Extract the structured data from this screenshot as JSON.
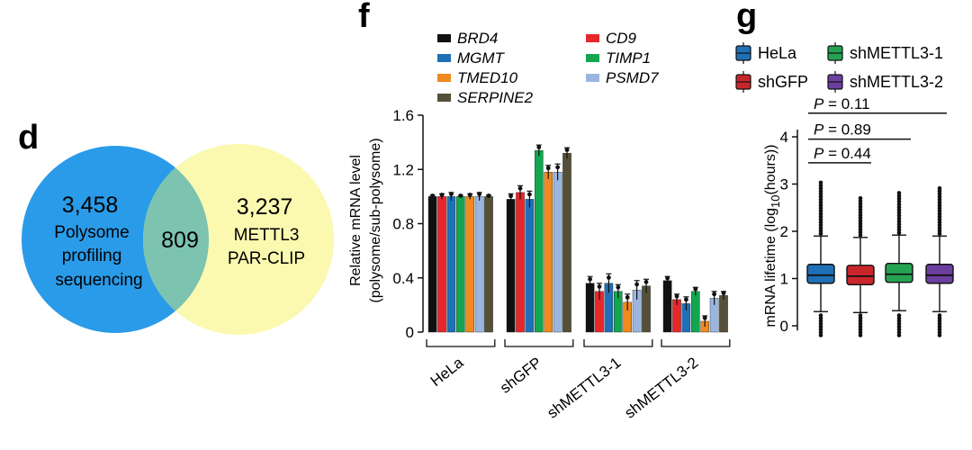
{
  "panels": {
    "d": "d",
    "f": "f",
    "g": "g"
  },
  "venn": {
    "left": {
      "count": "3,458",
      "lines": [
        "Polysome",
        "profiling",
        "sequencing"
      ],
      "color": "#2a9be8"
    },
    "right": {
      "count": "3,237",
      "lines": [
        "METTL3",
        "PAR-CLIP"
      ],
      "color": "#fbf8b0"
    },
    "overlap": {
      "count": "809",
      "color": "#7cc3b0"
    }
  },
  "chart_data": [
    {
      "panel": "f",
      "type": "bar",
      "ylabel_lines": [
        "Relative mRNA level",
        "(polysome/sub-polysome)"
      ],
      "ylim": [
        0,
        1.6
      ],
      "yticks": [
        "0",
        "0.4",
        "0.8",
        "1.2",
        "1.6"
      ],
      "categories": [
        "HeLa",
        "shGFP",
        "shMETTL3-1",
        "shMETTL3-2"
      ],
      "series": [
        {
          "name": "BRD4",
          "color": "#111111",
          "values": [
            1.0,
            0.98,
            0.36,
            0.38
          ]
        },
        {
          "name": "CD9",
          "color": "#e8272b",
          "values": [
            1.0,
            1.03,
            0.3,
            0.24
          ]
        },
        {
          "name": "MGMT",
          "color": "#1f70b6",
          "values": [
            1.0,
            0.98,
            0.36,
            0.21
          ]
        },
        {
          "name": "TIMP1",
          "color": "#12a650",
          "values": [
            1.0,
            1.34,
            0.3,
            0.3
          ]
        },
        {
          "name": "TMED10",
          "color": "#ee8a1f",
          "values": [
            1.0,
            1.18,
            0.22,
            0.08
          ]
        },
        {
          "name": "PSMD7",
          "color": "#9ab6e0",
          "values": [
            1.0,
            1.18,
            0.31,
            0.25
          ]
        },
        {
          "name": "SERPINE2",
          "color": "#55503a",
          "values": [
            1.0,
            1.32,
            0.34,
            0.27
          ]
        }
      ],
      "legend_order": [
        "BRD4",
        "CD9",
        "MGMT",
        "TIMP1",
        "TMED10",
        "PSMD7",
        "SERPINE2"
      ]
    },
    {
      "panel": "g",
      "type": "box",
      "ylabel": "mRNA lifetime (log10(hours))",
      "ylim": [
        0,
        4
      ],
      "yticks": [
        "0",
        "1",
        "2",
        "3",
        "4"
      ],
      "groups": [
        {
          "name": "HeLa",
          "color": "#1f70b6",
          "q1": 0.9,
          "median": 1.07,
          "q3": 1.3,
          "whisker_low": 0.3,
          "whisker_high": 1.9,
          "outlier_min": -0.2,
          "outlier_max": 3.05
        },
        {
          "name": "shGFP",
          "color": "#c9262c",
          "q1": 0.87,
          "median": 1.05,
          "q3": 1.28,
          "whisker_low": 0.28,
          "whisker_high": 1.87,
          "outlier_min": -0.2,
          "outlier_max": 2.72
        },
        {
          "name": "shMETTL3-1",
          "color": "#25a352",
          "q1": 0.92,
          "median": 1.09,
          "q3": 1.32,
          "whisker_low": 0.32,
          "whisker_high": 1.92,
          "outlier_min": -0.2,
          "outlier_max": 2.84
        },
        {
          "name": "shMETTL3-2",
          "color": "#6b3fa0",
          "q1": 0.9,
          "median": 1.07,
          "q3": 1.3,
          "whisker_low": 0.3,
          "whisker_high": 1.9,
          "outlier_min": -0.2,
          "outlier_max": 2.95
        }
      ],
      "pvalues": [
        {
          "label": "P",
          "value": "= 0.11"
        },
        {
          "label": "P",
          "value": "= 0.89"
        },
        {
          "label": "P",
          "value": "= 0.44"
        }
      ]
    }
  ]
}
